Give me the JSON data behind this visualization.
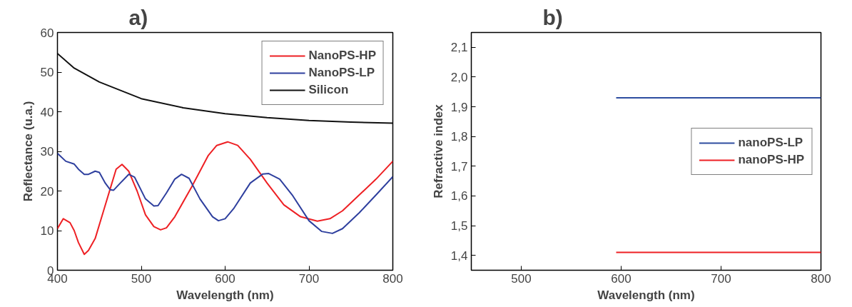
{
  "chart_data": [
    {
      "type": "line",
      "title": "a)",
      "xlabel": "Wavelength (nm)",
      "ylabel": "Reflectance (u.a.)",
      "xlim": [
        400,
        800
      ],
      "ylim": [
        0,
        60
      ],
      "xticks": [
        400,
        500,
        600,
        700,
        800
      ],
      "yticks": [
        0,
        10,
        20,
        30,
        40,
        50,
        60
      ],
      "legend": "top right",
      "grid": false,
      "series": [
        {
          "name": "NanoPS-HP",
          "color": "#ee2024",
          "x": [
            400,
            407,
            415,
            420,
            425,
            432,
            437,
            445,
            455,
            465,
            470,
            477,
            485,
            495,
            505,
            515,
            523,
            530,
            540,
            560,
            580,
            590,
            603,
            615,
            630,
            650,
            670,
            690,
            710,
            725,
            740,
            760,
            780,
            800
          ],
          "values": [
            10.5,
            13,
            12,
            10,
            7,
            4,
            5,
            8,
            15,
            22,
            25.5,
            26.7,
            25,
            20,
            14,
            11,
            10.2,
            10.7,
            13.5,
            21,
            29,
            31.5,
            32.4,
            31.5,
            28,
            22,
            16.5,
            13.5,
            12.4,
            13,
            15,
            19,
            23,
            27.5
          ]
        },
        {
          "name": "NanoPS-LP",
          "color": "#2e3f9e",
          "x": [
            400,
            410,
            420,
            425,
            432,
            437,
            445,
            450,
            457,
            463,
            467,
            475,
            485,
            492,
            505,
            515,
            520,
            530,
            540,
            548,
            557,
            570,
            585,
            592,
            600,
            610,
            630,
            645,
            652,
            665,
            680,
            700,
            715,
            728,
            740,
            760,
            780,
            800
          ],
          "values": [
            29.5,
            27.5,
            26.8,
            25.5,
            24.2,
            24.2,
            25,
            24.7,
            22,
            20.3,
            20.2,
            22,
            24.2,
            23.5,
            18,
            16.2,
            16.3,
            19.5,
            23,
            24.2,
            23.2,
            18,
            13.5,
            12.5,
            13,
            15.5,
            22,
            24.3,
            24.4,
            23,
            19,
            12.5,
            9.8,
            9.3,
            10.5,
            14.5,
            19,
            23.6
          ]
        },
        {
          "name": "Silicon",
          "color": "#111111",
          "x": [
            400,
            420,
            450,
            500,
            550,
            600,
            650,
            700,
            750,
            800
          ],
          "values": [
            54.7,
            51,
            47.5,
            43.3,
            41,
            39.5,
            38.5,
            37.8,
            37.4,
            37.1
          ]
        }
      ]
    },
    {
      "type": "line",
      "title": "b)",
      "xlabel": "Wavelength (nm)",
      "ylabel": "Refractive index",
      "xlim": [
        450,
        800
      ],
      "ylim": [
        1.35,
        2.15
      ],
      "xticks": [
        500,
        600,
        700,
        800
      ],
      "yticks": [
        {
          "value": 1.4,
          "label": "1,4"
        },
        {
          "value": 1.5,
          "label": "1,5"
        },
        {
          "value": 1.6,
          "label": "1,6"
        },
        {
          "value": 1.7,
          "label": "1,7"
        },
        {
          "value": 1.8,
          "label": "1,8"
        },
        {
          "value": 1.9,
          "label": "1,9"
        },
        {
          "value": 2.0,
          "label": "2,0"
        },
        {
          "value": 2.1,
          "label": "2,1"
        }
      ],
      "legend": "right",
      "grid": false,
      "series": [
        {
          "name": "nanoPS-LP",
          "color": "#2e4da0",
          "x": [
            595,
            800
          ],
          "values": [
            1.93,
            1.93
          ]
        },
        {
          "name": "nanoPS-HP",
          "color": "#ee2024",
          "x": [
            595,
            800
          ],
          "values": [
            1.41,
            1.41
          ]
        }
      ]
    }
  ]
}
